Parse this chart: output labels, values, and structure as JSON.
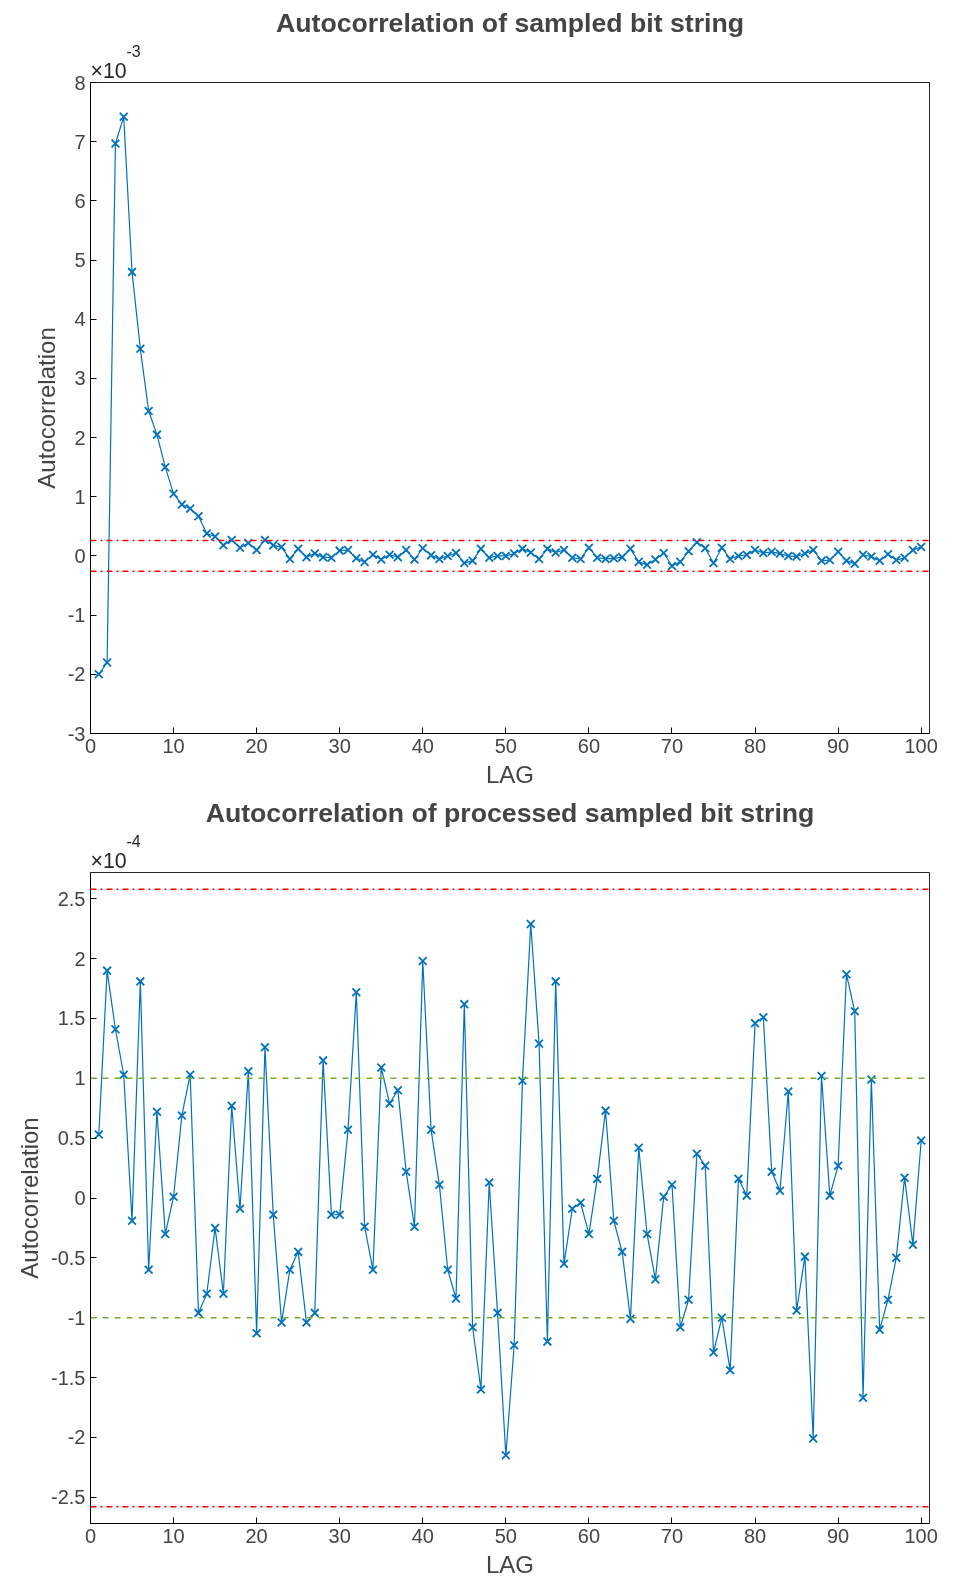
{
  "chart_data": [
    {
      "type": "line",
      "title": "Autocorrelation of sampled bit string",
      "xlabel": "LAG",
      "ylabel": "Autocorrelation",
      "annotations": [
        "×10$^{-3}$"
      ],
      "marker": "cross",
      "grid": false,
      "xlim": [
        0,
        101
      ],
      "ylim": [
        -3,
        8
      ],
      "xticks": [
        0,
        10,
        20,
        30,
        40,
        50,
        60,
        70,
        80,
        90,
        100
      ],
      "yticks": [
        -3,
        -2,
        -1,
        0,
        1,
        2,
        3,
        4,
        5,
        6,
        7,
        8
      ],
      "x": [
        1,
        2,
        3,
        4,
        5,
        6,
        7,
        8,
        9,
        10,
        11,
        12,
        13,
        14,
        15,
        16,
        17,
        18,
        19,
        20,
        21,
        22,
        23,
        24,
        25,
        26,
        27,
        28,
        29,
        30,
        31,
        32,
        33,
        34,
        35,
        36,
        37,
        38,
        39,
        40,
        41,
        42,
        43,
        44,
        45,
        46,
        47,
        48,
        49,
        50,
        51,
        52,
        53,
        54,
        55,
        56,
        57,
        58,
        59,
        60,
        61,
        62,
        63,
        64,
        65,
        66,
        67,
        68,
        69,
        70,
        71,
        72,
        73,
        74,
        75,
        76,
        77,
        78,
        79,
        80,
        81,
        82,
        83,
        84,
        85,
        86,
        87,
        88,
        89,
        90,
        91,
        92,
        93,
        94,
        95,
        96,
        97,
        98,
        99,
        100
      ],
      "series": [
        {
          "color": "#0072bd",
          "values": [
            -2.0,
            -1.8,
            6.97,
            7.42,
            4.8,
            3.5,
            2.45,
            2.05,
            1.5,
            1.05,
            0.87,
            0.8,
            0.67,
            0.38,
            0.33,
            0.18,
            0.27,
            0.14,
            0.22,
            0.1,
            0.27,
            0.18,
            0.15,
            -0.05,
            0.12,
            -0.02,
            0.04,
            -0.02,
            -0.03,
            0.09,
            0.1,
            -0.04,
            -0.1,
            0.02,
            -0.06,
            0.02,
            -0.02,
            0.1,
            -0.06,
            0.13,
            0.01,
            -0.05,
            0.0,
            0.05,
            -0.12,
            -0.08,
            0.12,
            -0.03,
            0.0,
            0.0,
            0.04,
            0.12,
            0.06,
            -0.05,
            0.12,
            0.06,
            0.1,
            -0.03,
            -0.05,
            0.14,
            -0.03,
            -0.05,
            -0.04,
            -0.02,
            0.12,
            -0.1,
            -0.15,
            -0.06,
            0.05,
            -0.17,
            -0.1,
            0.08,
            0.23,
            0.13,
            -0.12,
            0.14,
            -0.05,
            0.0,
            0.02,
            0.1,
            0.05,
            0.07,
            0.04,
            0.0,
            -0.01,
            0.04,
            0.1,
            -0.08,
            -0.07,
            0.07,
            -0.08,
            -0.13,
            0.02,
            -0.01,
            -0.08,
            0.03,
            -0.07,
            -0.03,
            0.1,
            0.15
          ]
        }
      ],
      "ref_lines": [
        {
          "axis": "y",
          "value": 0.26,
          "color": "#ff0000",
          "line_style": "dashdot"
        },
        {
          "axis": "y",
          "value": -0.26,
          "color": "#ff0000",
          "line_style": "dashdot"
        }
      ]
    },
    {
      "type": "line",
      "title": "Autocorrelation of processed sampled bit string",
      "xlabel": "LAG",
      "ylabel": "Autocorrelation",
      "annotations": [
        "×10$^{-4}$"
      ],
      "marker": "cross",
      "grid": false,
      "xlim": [
        0,
        101
      ],
      "ylim": [
        -2.72,
        2.72
      ],
      "xticks": [
        0,
        10,
        20,
        30,
        40,
        50,
        60,
        70,
        80,
        90,
        100
      ],
      "yticks": [
        -2.5,
        -2,
        -1.5,
        -1,
        -0.5,
        0,
        0.5,
        1,
        1.5,
        2,
        2.5
      ],
      "x": [
        1,
        2,
        3,
        4,
        5,
        6,
        7,
        8,
        9,
        10,
        11,
        12,
        13,
        14,
        15,
        16,
        17,
        18,
        19,
        20,
        21,
        22,
        23,
        24,
        25,
        26,
        27,
        28,
        29,
        30,
        31,
        32,
        33,
        34,
        35,
        36,
        37,
        38,
        39,
        40,
        41,
        42,
        43,
        44,
        45,
        46,
        47,
        48,
        49,
        50,
        51,
        52,
        53,
        54,
        55,
        56,
        57,
        58,
        59,
        60,
        61,
        62,
        63,
        64,
        65,
        66,
        67,
        68,
        69,
        70,
        71,
        72,
        73,
        74,
        75,
        76,
        77,
        78,
        79,
        80,
        81,
        82,
        83,
        84,
        85,
        86,
        87,
        88,
        89,
        90,
        91,
        92,
        93,
        94,
        95,
        96,
        97,
        98,
        99,
        100
      ],
      "series": [
        {
          "color": "#0072bd",
          "values": [
            0.53,
            1.9,
            1.41,
            1.03,
            -0.19,
            1.81,
            -0.6,
            0.72,
            -0.3,
            0.01,
            0.69,
            1.03,
            -0.96,
            -0.8,
            -0.25,
            -0.8,
            0.77,
            -0.09,
            1.06,
            -1.13,
            1.26,
            -0.14,
            -1.04,
            -0.6,
            -0.45,
            -1.04,
            -0.96,
            1.15,
            -0.14,
            -0.14,
            0.57,
            1.72,
            -0.24,
            -0.6,
            1.09,
            0.79,
            0.9,
            0.22,
            -0.24,
            1.98,
            0.57,
            0.11,
            -0.6,
            -0.84,
            1.62,
            -1.08,
            -1.6,
            0.13,
            -0.96,
            -2.15,
            -1.23,
            0.98,
            2.29,
            1.29,
            -1.2,
            1.81,
            -0.55,
            -0.09,
            -0.04,
            -0.3,
            0.16,
            0.73,
            -0.19,
            -0.45,
            -1.01,
            0.42,
            -0.3,
            -0.68,
            0.01,
            0.11,
            -1.08,
            -0.85,
            0.37,
            0.27,
            -1.29,
            -1.0,
            -1.44,
            0.16,
            0.02,
            1.46,
            1.51,
            0.22,
            0.06,
            0.89,
            -0.94,
            -0.49,
            -2.01,
            1.02,
            0.02,
            0.27,
            1.87,
            1.56,
            -1.67,
            0.99,
            -1.1,
            -0.85,
            -0.5,
            0.17,
            -0.39,
            0.48
          ]
        }
      ],
      "ref_lines": [
        {
          "axis": "y",
          "value": 2.58,
          "color": "#ff0000",
          "line_style": "dashdot"
        },
        {
          "axis": "y",
          "value": -2.58,
          "color": "#ff0000",
          "line_style": "dashdot"
        },
        {
          "axis": "y",
          "value": 1,
          "color": "#77ac30",
          "line_style": "dashed"
        },
        {
          "axis": "y",
          "value": -1,
          "color": "#77ac30",
          "line_style": "dashed"
        }
      ]
    }
  ]
}
